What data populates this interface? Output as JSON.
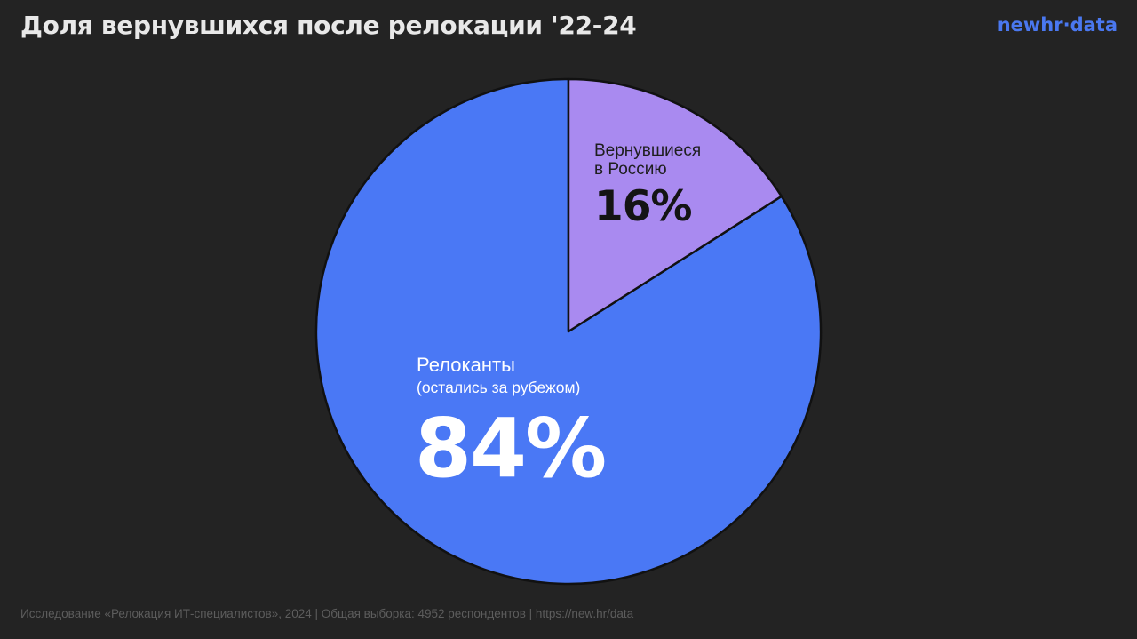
{
  "title": "Доля вернувшихся после релокации '22-24",
  "logo": "newhr·data",
  "footer": "Исследование «Релокация ИТ-специалистов», 2024 | Общая выборка: 4952 респондентов | https://new.hr/data",
  "colors": {
    "background": "#232323",
    "relocants": "#4a78f5",
    "returned": "#a98af0",
    "logo": "#4a78f0"
  },
  "chart_data": {
    "type": "pie",
    "slices": [
      {
        "label_lines": [
          "Вернувшиеся",
          "в Россию"
        ],
        "value": 16,
        "value_label": "16%",
        "color": "#a98af0"
      },
      {
        "label_lines": [
          "Релоканты",
          "(остались за рубежом)"
        ],
        "value": 84,
        "value_label": "84%",
        "color": "#4a78f5"
      }
    ]
  }
}
